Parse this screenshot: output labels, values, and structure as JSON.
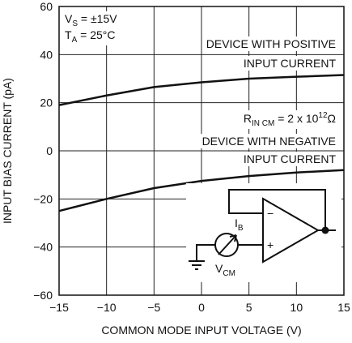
{
  "chart_data": {
    "type": "line",
    "x_label": "COMMON MODE INPUT VOLTAGE (V)",
    "y_label": "INPUT BIAS CURRENT (pA)",
    "xlim": [
      -15,
      15
    ],
    "ylim": [
      -60,
      60
    ],
    "xticks": [
      {
        "value": -15,
        "label": "−15"
      },
      {
        "value": -10,
        "label": "−10"
      },
      {
        "value": -5,
        "label": "−5"
      },
      0,
      5,
      10,
      15
    ],
    "yticks": [
      {
        "value": -60,
        "label": "−60"
      },
      {
        "value": -40,
        "label": "−40"
      },
      {
        "value": -20,
        "label": "−20"
      },
      0,
      20,
      40,
      60
    ],
    "grid": true,
    "x": [
      -15,
      -10,
      -5,
      0,
      5,
      10,
      15
    ],
    "series": [
      {
        "name": [
          "DEVICE WITH POSITIVE",
          "INPUT CURRENT"
        ],
        "color": "#111111",
        "values": [
          19,
          23,
          26.5,
          28.5,
          30,
          30.8,
          31.5
        ]
      },
      {
        "name": [
          "DEVICE WITH NEGATIVE",
          "INPUT CURRENT"
        ],
        "color": "#111111",
        "values": [
          -25,
          -20,
          -15.5,
          -12.5,
          -10.5,
          -9,
          -8
        ]
      }
    ],
    "conditions": [
      {
        "main": "V",
        "sub": "S",
        "rest": " = ±15V"
      },
      {
        "main": "T",
        "sub": "A",
        "rest": " = 25°C"
      }
    ],
    "resistance": {
      "main": "R",
      "sub": "IN CM",
      "rest": " = 2 x 10",
      "sup": "12",
      "unit": "Ω"
    },
    "circuit": {
      "minus": "−",
      "plus": "+",
      "current": {
        "main": "I",
        "sub": "B"
      },
      "source": {
        "main": "V",
        "sub": "CM"
      }
    }
  }
}
